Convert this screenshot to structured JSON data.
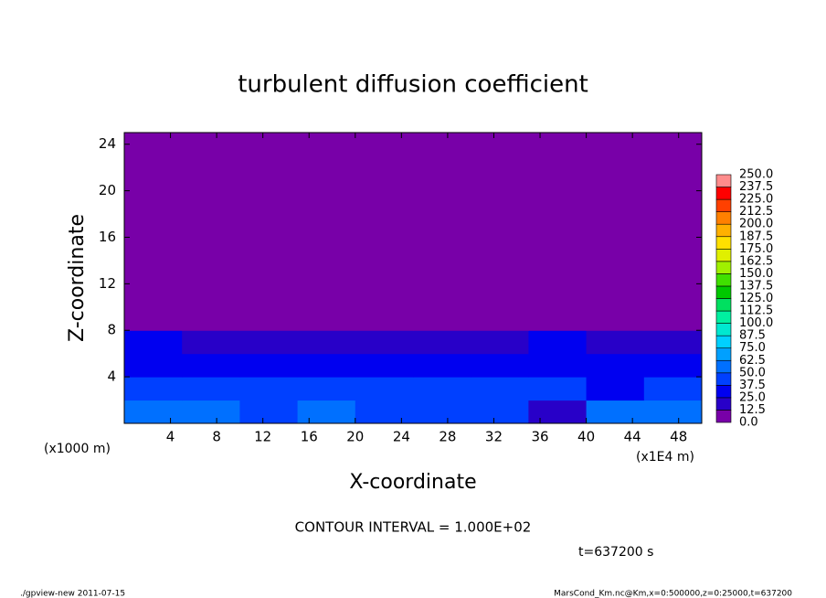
{
  "chart_data": {
    "type": "contour",
    "title": "turbulent diffusion coefficient",
    "xlabel": "X-coordinate",
    "ylabel": "Z-coordinate",
    "xunit": "(x1E4 m)",
    "yunit": "(x1000 m)",
    "xlim": [
      0,
      50
    ],
    "ylim": [
      0,
      25
    ],
    "xticks": [
      4,
      8,
      12,
      16,
      20,
      24,
      28,
      32,
      36,
      40,
      44,
      48
    ],
    "yticks": [
      4,
      8,
      12,
      16,
      20,
      24
    ],
    "field": {
      "xbins": [
        0,
        5,
        10,
        15,
        20,
        25,
        30,
        35,
        40,
        45,
        50
      ],
      "zbins": [
        0,
        2,
        4,
        6,
        8,
        25
      ],
      "z": [
        [
          50,
          55,
          45,
          55,
          40,
          45,
          40,
          20,
          50,
          55
        ],
        [
          45,
          40,
          45,
          40,
          45,
          45,
          40,
          45,
          35,
          40
        ],
        [
          35,
          35,
          30,
          30,
          35,
          30,
          30,
          35,
          30,
          30
        ],
        [
          25,
          20,
          15,
          20,
          20,
          20,
          15,
          25,
          20,
          20
        ],
        [
          0,
          0,
          0,
          0,
          0,
          0,
          0,
          0,
          0,
          0
        ]
      ]
    },
    "colorbar": {
      "levels": [
        {
          "value": 0,
          "label": "0.0"
        },
        12.5,
        {
          "value": 25,
          "label": "25.0"
        },
        37.5,
        {
          "value": 50,
          "label": "50.0"
        },
        62.5,
        {
          "value": 75,
          "label": "75.0"
        },
        87.5,
        {
          "value": 100,
          "label": "100.0"
        },
        112.5,
        {
          "value": 125,
          "label": "125.0"
        },
        137.5,
        {
          "value": 150,
          "label": "150.0"
        },
        162.5,
        {
          "value": 175,
          "label": "175.0"
        },
        187.5,
        {
          "value": 200,
          "label": "200.0"
        },
        212.5,
        {
          "value": 225,
          "label": "225.0"
        },
        237.5,
        {
          "value": 250,
          "label": "250.0"
        }
      ],
      "colors": [
        "#7800a8",
        "#2800c8",
        "#0000f0",
        "#0040ff",
        "#0070ff",
        "#00a0ff",
        "#00d0ff",
        "#00e8d0",
        "#00f0a0",
        "#00e060",
        "#00c800",
        "#40e000",
        "#a0f000",
        "#e0f000",
        "#ffe000",
        "#ffb000",
        "#ff8000",
        "#ff4000",
        "#ff0000",
        "#ff8c8c"
      ]
    },
    "annotation": "CONTOUR INTERVAL = 1.000E+02",
    "time": "t=637200 s",
    "footer_left": "./gpview-new  2011-07-15",
    "footer_right": "MarsCond_Km.nc@Km,x=0:500000,z=0:25000,t=637200"
  }
}
